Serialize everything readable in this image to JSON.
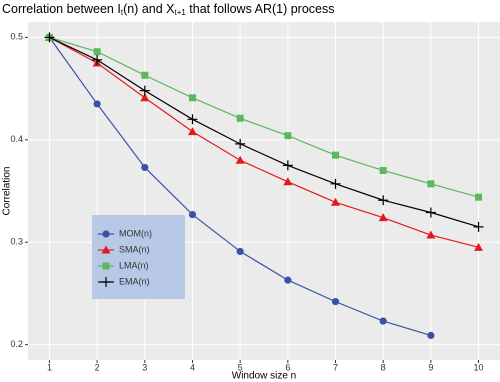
{
  "chart_data": {
    "type": "line",
    "title": [
      "Correlation between I",
      "t",
      "(n) and X",
      "t+1",
      " that follows AR(1) process"
    ],
    "x_label": "Window size n",
    "y_label": "Correlation",
    "x": [
      1,
      2,
      3,
      4,
      5,
      6,
      7,
      8,
      9,
      10
    ],
    "series": [
      {
        "name": "MOM(n)",
        "color": "#3953a4",
        "marker": "circle",
        "values": [
          0.5,
          0.435,
          0.373,
          0.327,
          0.291,
          0.263,
          0.242,
          0.223,
          0.209,
          null
        ]
      },
      {
        "name": "SMA(n)",
        "color": "#e31a1c",
        "marker": "triangle",
        "values": [
          0.5,
          0.475,
          0.441,
          0.408,
          0.38,
          0.359,
          0.339,
          0.324,
          0.307,
          0.295
        ]
      },
      {
        "name": "LMA(n)",
        "color": "#5cb85c",
        "marker": "square",
        "values": [
          0.5,
          0.486,
          0.463,
          0.441,
          0.421,
          0.404,
          0.385,
          0.37,
          0.357,
          0.344
        ]
      },
      {
        "name": "EMA(n)",
        "color": "#000000",
        "marker": "plus",
        "values": [
          0.5,
          0.478,
          0.448,
          0.42,
          0.396,
          0.375,
          0.357,
          0.341,
          0.329,
          0.315
        ]
      }
    ],
    "xlim": [
      0.55,
      10.45
    ],
    "xticks": [
      1,
      2,
      3,
      4,
      5,
      6,
      7,
      8,
      9,
      10
    ],
    "ylim": [
      0.185,
      0.515
    ],
    "yticks": [
      0.2,
      0.3,
      0.4,
      0.5
    ],
    "grid": true,
    "legend_position": "inside-left"
  }
}
